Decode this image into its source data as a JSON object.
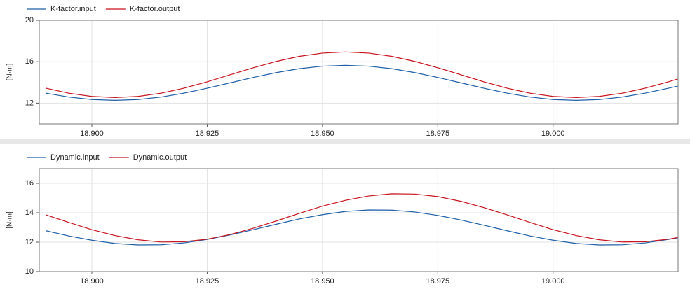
{
  "chart_data": [
    {
      "type": "line",
      "y_label": "[N·m]",
      "x": [
        18.89,
        18.895,
        18.9,
        18.905,
        18.91,
        18.915,
        18.92,
        18.925,
        18.93,
        18.935,
        18.94,
        18.945,
        18.95,
        18.955,
        18.96,
        18.965,
        18.97,
        18.975,
        18.98,
        18.985,
        18.99,
        18.995,
        19.0,
        19.005,
        19.01,
        19.015,
        19.02,
        19.025,
        19.027
      ],
      "series": [
        {
          "name": "K-factor.input",
          "color": "#1f5fa8",
          "values": [
            12.97,
            12.59,
            12.35,
            12.27,
            12.35,
            12.59,
            12.97,
            13.44,
            13.96,
            14.48,
            14.95,
            15.33,
            15.57,
            15.65,
            15.57,
            15.33,
            14.95,
            14.48,
            13.96,
            13.44,
            12.97,
            12.59,
            12.35,
            12.27,
            12.35,
            12.59,
            12.97,
            13.44,
            13.64
          ]
        },
        {
          "name": "K-factor.output",
          "color": "#c8141e",
          "values": [
            13.45,
            12.96,
            12.65,
            12.54,
            12.65,
            12.96,
            13.45,
            14.06,
            14.74,
            15.42,
            16.03,
            16.52,
            16.83,
            16.94,
            16.83,
            16.52,
            16.03,
            15.42,
            14.74,
            14.06,
            13.45,
            12.96,
            12.65,
            12.54,
            12.65,
            12.96,
            13.45,
            14.06,
            14.33
          ]
        }
      ],
      "xlim": [
        18.8886,
        19.0271
      ],
      "ylim": [
        10,
        20
      ],
      "xticks": [
        {
          "value": 18.9,
          "label": "18.900"
        },
        {
          "value": 18.925,
          "label": "18.925"
        },
        {
          "value": 18.95,
          "label": "18.950"
        },
        {
          "value": 18.975,
          "label": "18.975"
        },
        {
          "value": 19.0,
          "label": "19.000"
        }
      ],
      "yticks": [
        12,
        16,
        20
      ],
      "grid": true
    },
    {
      "type": "line",
      "y_label": "[N·m]",
      "x": [
        18.89,
        18.895,
        18.9,
        18.905,
        18.91,
        18.915,
        18.92,
        18.925,
        18.93,
        18.935,
        18.94,
        18.945,
        18.95,
        18.955,
        18.96,
        18.965,
        18.97,
        18.975,
        18.98,
        18.985,
        18.99,
        18.995,
        19.0,
        19.005,
        19.01,
        19.015,
        19.02,
        19.025,
        19.027
      ],
      "series": [
        {
          "name": "Dynamic.input",
          "color": "#1f5fa8",
          "values": [
            12.78,
            12.42,
            12.13,
            11.91,
            11.81,
            11.82,
            11.95,
            12.18,
            12.49,
            12.85,
            13.22,
            13.58,
            13.87,
            14.09,
            14.19,
            14.18,
            14.05,
            13.82,
            13.51,
            13.15,
            12.78,
            12.42,
            12.13,
            11.91,
            11.81,
            11.82,
            11.95,
            12.18,
            12.29
          ]
        },
        {
          "name": "Dynamic.output",
          "color": "#c8141e",
          "values": [
            13.86,
            13.34,
            12.85,
            12.45,
            12.16,
            12.01,
            12.03,
            12.2,
            12.52,
            12.95,
            13.44,
            13.96,
            14.45,
            14.85,
            15.14,
            15.29,
            15.27,
            15.1,
            14.78,
            14.35,
            13.86,
            13.34,
            12.85,
            12.45,
            12.16,
            12.01,
            12.03,
            12.2,
            12.32
          ]
        }
      ],
      "xlim": [
        18.8886,
        19.0271
      ],
      "ylim": [
        10,
        17
      ],
      "xticks": [
        {
          "value": 18.9,
          "label": "18.900"
        },
        {
          "value": 18.925,
          "label": "18.925"
        },
        {
          "value": 18.95,
          "label": "18.950"
        },
        {
          "value": 18.975,
          "label": "18.975"
        },
        {
          "value": 19.0,
          "label": "19.000"
        }
      ],
      "yticks": [
        10,
        12,
        14,
        16
      ],
      "grid": true
    }
  ]
}
